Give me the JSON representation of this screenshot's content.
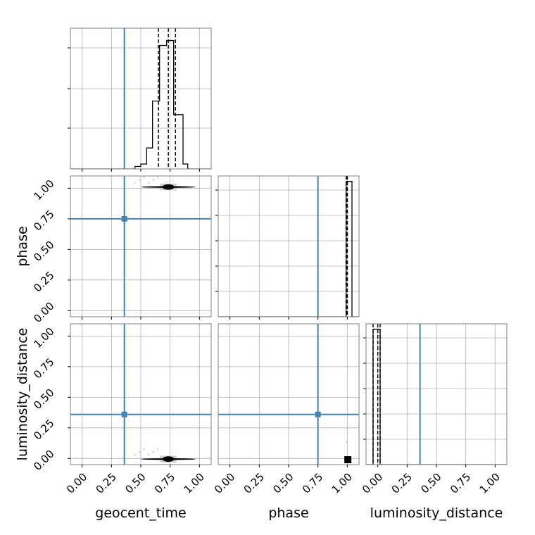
{
  "chart_data": {
    "type": "corner",
    "parameters": [
      "geocent_time",
      "phase",
      "luminosity_distance"
    ],
    "axis_labels": {
      "x": [
        "geocent_time",
        "phase",
        "luminosity_distance"
      ],
      "y": [
        "",
        "phase",
        "luminosity_distance"
      ]
    },
    "ticks": {
      "values": [
        0.0,
        0.25,
        0.5,
        0.75,
        1.0
      ],
      "labels": [
        "0.00",
        "0.25",
        "0.50",
        "0.75",
        "1.00"
      ]
    },
    "truth_values": {
      "geocent_time": 0.36,
      "phase": 0.75,
      "luminosity_distance": 0.36
    },
    "truth_color": "#4682b4",
    "grid": true,
    "histograms": {
      "geocent_time": {
        "xlim": [
          -0.1,
          1.1
        ],
        "ylim": [
          0,
          1.14
        ],
        "bin_edges": [
          0.45,
          0.5,
          0.55,
          0.6,
          0.62,
          0.66,
          0.68,
          0.72,
          0.74,
          0.78,
          0.8,
          0.86,
          0.9
        ],
        "counts": [
          0.02,
          0.04,
          0.17,
          0.55,
          0.55,
          1.0,
          1.0,
          1.04,
          1.04,
          0.44,
          0.44,
          0.04
        ],
        "quantiles": [
          0.65,
          0.735,
          0.795
        ]
      },
      "phase": {
        "xlim": [
          -0.1,
          1.1
        ],
        "ylim": [
          0,
          1.04
        ],
        "bin_edges": [
          0.99,
          1.0,
          1.04
        ],
        "counts": [
          1.0,
          1.0
        ],
        "quantiles": [
          0.99,
          1.0,
          1.0
        ]
      },
      "luminosity_distance": {
        "xlim": [
          -0.1,
          1.1
        ],
        "ylim": [
          0,
          1.04
        ],
        "bin_edges": [
          -0.04,
          0.01,
          0.02
        ],
        "counts": [
          1.0,
          1.0
        ],
        "quantiles": [
          -0.04,
          0.0,
          0.02
        ]
      }
    },
    "density_2d": [
      {
        "x_param": "geocent_time",
        "y_param": "phase",
        "xlim": [
          -0.1,
          1.1
        ],
        "ylim": [
          -0.05,
          1.1
        ],
        "center": [
          0.735,
          1.01
        ],
        "spread": [
          0.05,
          0.015
        ],
        "extent_x": [
          0.45,
          0.92
        ]
      },
      {
        "x_param": "geocent_time",
        "y_param": "luminosity_distance",
        "xlim": [
          -0.1,
          1.1
        ],
        "ylim": [
          -0.05,
          1.1
        ],
        "center": [
          0.735,
          -0.005
        ],
        "spread": [
          0.05,
          0.012
        ],
        "extent_x": [
          0.45,
          0.92
        ]
      },
      {
        "x_param": "phase",
        "y_param": "luminosity_distance",
        "xlim": [
          -0.1,
          1.1
        ],
        "ylim": [
          -0.05,
          1.1
        ],
        "center": [
          1.005,
          -0.01
        ],
        "spread": [
          0.012,
          0.01
        ],
        "extent_x": [
          0.98,
          1.03
        ]
      }
    ]
  }
}
